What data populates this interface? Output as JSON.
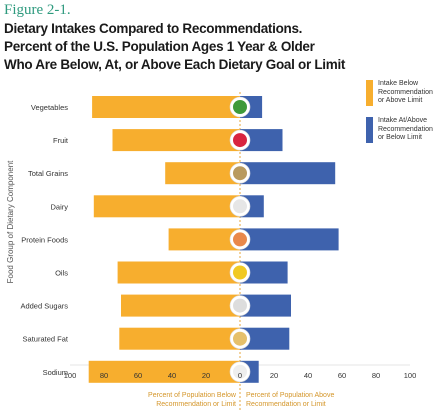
{
  "figure_label": "Figure 2-1.",
  "title_lines": [
    "Dietary Intakes Compared to Recommendations.",
    "Percent of the U.S. Population Ages 1 Year & Older",
    "Who Are Below, At, or Above Each Dietary Goal or Limit"
  ],
  "legend": {
    "below": {
      "line1": "Intake Below",
      "line2": "Recommendation",
      "line3": "or Above Limit"
    },
    "above": {
      "line1": "Intake At/Above",
      "line2": "Recommendation",
      "line3": "or Below Limit"
    }
  },
  "x_label_left": {
    "line1": "Percent of Population Below",
    "line2": "Recommendation or Limit"
  },
  "x_label_right": {
    "line1": "Percent of Population Above",
    "line2": "Recommendation or Limit"
  },
  "colors": {
    "below": "#f7ae2e",
    "above": "#3e62ad",
    "axis_text": "#d4962a"
  },
  "chart_data": {
    "type": "bar",
    "orientation": "horizontal-diverging",
    "ylabel": "Food Group of Dietary Component",
    "xlim": [
      -100,
      100
    ],
    "x_ticks": [
      "100",
      "80",
      "60",
      "40",
      "20",
      "0",
      "20",
      "40",
      "60",
      "80",
      "100"
    ],
    "categories": [
      "Vegetables",
      "Fruit",
      "Total Grains",
      "Dairy",
      "Protein Foods",
      "Oils",
      "Added Sugars",
      "Saturated Fat",
      "Sodium"
    ],
    "icons": [
      "vegetables-icon",
      "fruit-icon",
      "grains-icon",
      "dairy-icon",
      "protein-icon",
      "oils-icon",
      "sugar-icon",
      "saturated-fat-icon",
      "sodium-icon"
    ],
    "series": [
      {
        "name": "Intake Below Recommendation or Above Limit",
        "values": [
          87,
          75,
          44,
          86,
          42,
          72,
          70,
          71,
          89
        ]
      },
      {
        "name": "Intake At/Above Recommendation or Below Limit",
        "values": [
          13,
          25,
          56,
          14,
          58,
          28,
          30,
          29,
          11
        ]
      }
    ]
  }
}
